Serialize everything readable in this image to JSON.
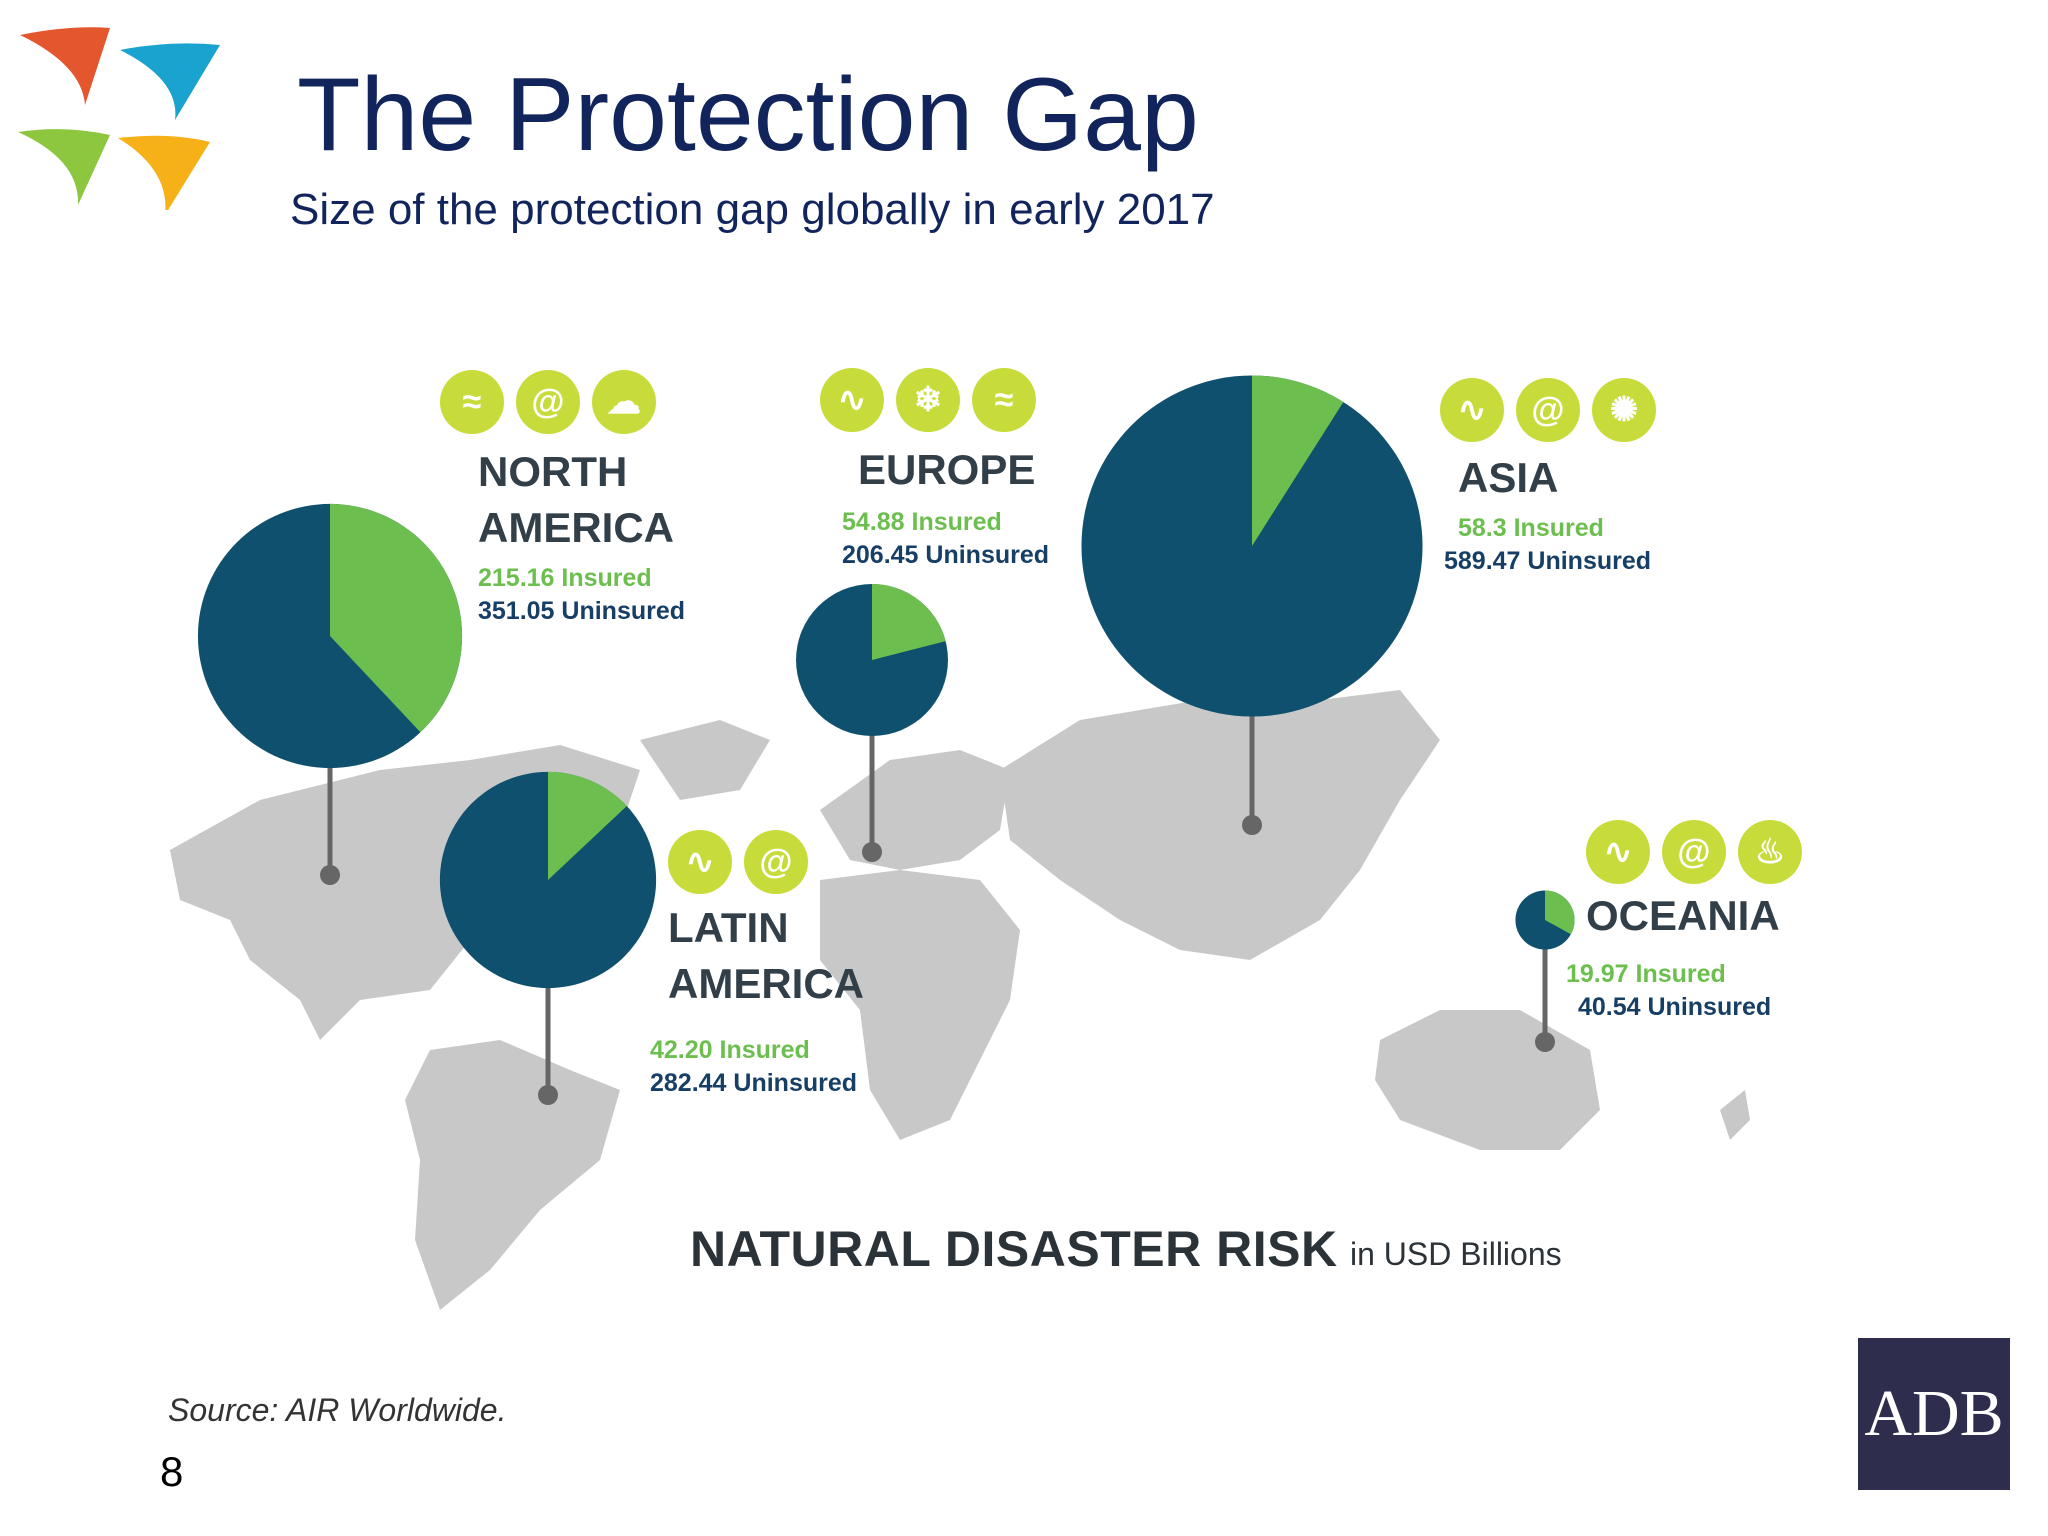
{
  "slide": {
    "title": "The Protection Gap",
    "subtitle": "Size of the protection gap globally in early 2017",
    "source": "Source: AIR Worldwide.",
    "page_number": "8",
    "brand": "ADB"
  },
  "colors": {
    "title": "#12245c",
    "insured": "#6cbf4f",
    "uninsured": "#10506f",
    "map": "#c8c8c8",
    "icon_bg": "#c7dc3a",
    "badge": "#2e2d4d"
  },
  "chart_data": {
    "type": "pie",
    "title": "NATURAL DISASTER RISK",
    "units": "in USD Billions",
    "series": [
      {
        "name": "Insured",
        "color": "#6cbf4f"
      },
      {
        "name": "Uninsured",
        "color": "#10506f"
      }
    ],
    "regions": [
      {
        "name_lines": [
          "NORTH",
          "AMERICA"
        ],
        "insured": 215.16,
        "uninsured": 351.05,
        "insured_label": "215.16 Insured",
        "uninsured_label": "351.05 Uninsured",
        "hazard_icons": [
          "flood-icon",
          "cyclone-icon",
          "storm-icon"
        ]
      },
      {
        "name_lines": [
          "EUROPE"
        ],
        "insured": 54.88,
        "uninsured": 206.45,
        "insured_label": "54.88 Insured",
        "uninsured_label": "206.45 Uninsured",
        "hazard_icons": [
          "earthquake-icon",
          "winter-storm-icon",
          "flood-icon"
        ]
      },
      {
        "name_lines": [
          "ASIA"
        ],
        "insured": 58.3,
        "uninsured": 589.47,
        "insured_label": "58.3 Insured",
        "uninsured_label": "589.47 Uninsured",
        "hazard_icons": [
          "earthquake-icon",
          "cyclone-icon",
          "crop-icon"
        ]
      },
      {
        "name_lines": [
          "LATIN",
          "AMERICA"
        ],
        "insured": 42.2,
        "uninsured": 282.44,
        "insured_label": "42.20 Insured",
        "uninsured_label": "282.44 Uninsured",
        "hazard_icons": [
          "earthquake-icon",
          "cyclone-icon"
        ]
      },
      {
        "name_lines": [
          "OCEANIA"
        ],
        "insured": 19.97,
        "uninsured": 40.54,
        "insured_label": "19.97 Insured",
        "uninsured_label": "40.54 Uninsured",
        "hazard_icons": [
          "earthquake-icon",
          "cyclone-icon",
          "wildfire-icon"
        ]
      }
    ]
  }
}
